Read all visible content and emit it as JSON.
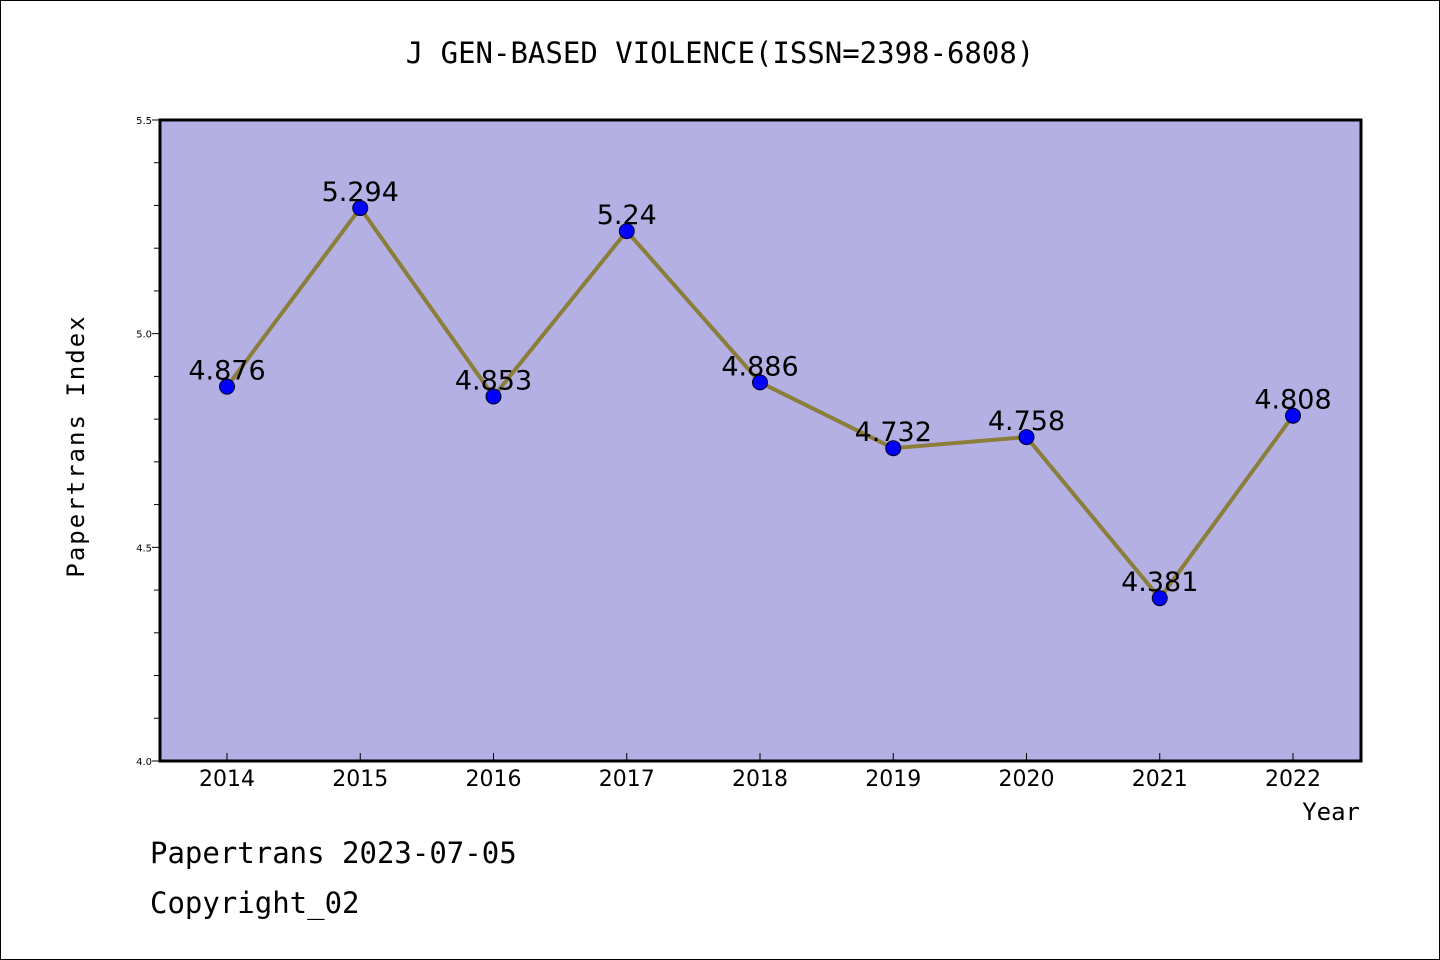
{
  "chart_data": {
    "type": "line",
    "title": "J GEN-BASED VIOLENCE(ISSN=2398-6808)",
    "xlabel": "Year",
    "ylabel": "Papertrans Index",
    "categories": [
      "2014",
      "2015",
      "2016",
      "2017",
      "2018",
      "2019",
      "2020",
      "2021",
      "2022"
    ],
    "values": [
      4.876,
      5.294,
      4.853,
      5.24,
      4.886,
      4.732,
      4.758,
      4.381,
      4.808
    ],
    "value_labels": [
      "4.876",
      "5.294",
      "4.853",
      "5.24",
      "4.886",
      "4.732",
      "4.758",
      "4.381",
      "4.808"
    ],
    "ylim": [
      4.0,
      5.5
    ],
    "y_ticks": [
      4.0,
      4.5,
      5.0,
      5.5
    ],
    "y_tick_labels": [
      "4.0",
      "4.5",
      "5.0",
      "5.5"
    ],
    "grid": false,
    "colors": {
      "plot_background": "#b5b0e3",
      "line": "#8b7d3a",
      "marker": "#0000ff"
    }
  },
  "footer": {
    "line1": "Papertrans 2023-07-05",
    "line2": "Copyright_02"
  }
}
